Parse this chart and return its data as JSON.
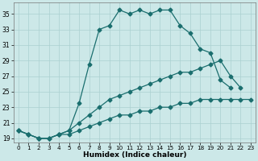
{
  "xlabel": "Humidex (Indice chaleur)",
  "bg_color": "#cce8e8",
  "grid_color": "#aad0d0",
  "line_color": "#1a6e6e",
  "xlim": [
    -0.5,
    23.5
  ],
  "ylim": [
    18.5,
    36.5
  ],
  "xticks": [
    0,
    1,
    2,
    3,
    4,
    5,
    6,
    7,
    8,
    9,
    10,
    11,
    12,
    13,
    14,
    15,
    16,
    17,
    18,
    19,
    20,
    21,
    22,
    23
  ],
  "yticks": [
    19,
    21,
    23,
    25,
    27,
    29,
    31,
    33,
    35
  ],
  "series1_x": [
    0,
    1,
    2,
    3,
    4,
    5,
    6,
    7,
    8,
    9,
    10,
    11,
    12,
    13,
    14,
    15,
    16,
    17,
    18,
    19,
    20,
    21
  ],
  "series1_y": [
    20.0,
    19.5,
    19.0,
    19.0,
    19.5,
    20.0,
    23.5,
    28.5,
    33.0,
    33.5,
    35.5,
    35.0,
    35.5,
    35.0,
    35.5,
    35.5,
    33.5,
    32.5,
    30.5,
    30.0,
    26.5,
    25.5
  ],
  "series2_x": [
    0,
    1,
    2,
    3,
    4,
    5,
    6,
    7,
    8,
    9,
    10,
    11,
    12,
    13,
    14,
    15,
    16,
    17,
    18,
    19,
    20,
    21,
    22,
    23
  ],
  "series2_y": [
    20.0,
    19.5,
    19.0,
    19.0,
    19.5,
    19.5,
    20.0,
    20.5,
    21.0,
    21.5,
    22.0,
    22.0,
    22.5,
    22.5,
    23.0,
    23.0,
    23.5,
    23.5,
    24.0,
    24.0,
    24.0,
    24.0,
    24.0,
    24.0
  ],
  "series3_x": [
    0,
    1,
    2,
    3,
    4,
    5,
    6,
    7,
    8,
    9,
    10,
    11,
    12,
    13,
    14,
    15,
    16,
    17,
    18,
    19,
    20,
    21,
    22,
    23
  ],
  "series3_y": [
    20.0,
    19.5,
    19.0,
    19.0,
    19.5,
    20.0,
    21.0,
    22.0,
    23.0,
    24.0,
    24.5,
    25.0,
    25.5,
    26.0,
    26.5,
    27.0,
    27.5,
    27.5,
    28.0,
    28.5,
    29.0,
    27.0,
    25.5,
    null
  ]
}
